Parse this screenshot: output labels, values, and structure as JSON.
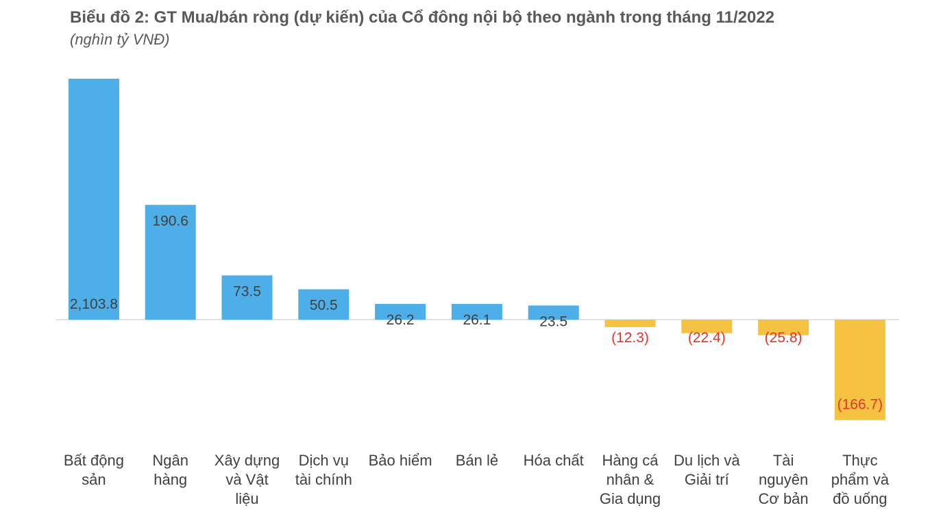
{
  "chart_data": {
    "type": "bar",
    "title": "Biểu đồ 2: GT Mua/bán ròng (dự kiến) của Cổ đông nội bộ theo ngành trong tháng 11/2022",
    "subtitle": "(nghìn tỷ VNĐ)",
    "xlabel": "",
    "ylabel": "",
    "grid": false,
    "legend": "none",
    "categories": [
      "Bất động sản",
      "Ngân hàng",
      "Xây dựng và Vật liệu",
      "Dịch vụ tài chính",
      "Bảo hiểm",
      "Bán lẻ",
      "Hóa chất",
      "Hàng cá nhân & Gia dụng",
      "Du lịch và Giải trí",
      "Tài nguyên Cơ bản",
      "Thực phẩm và đồ uống"
    ],
    "category_lines": [
      [
        "Bất động",
        "sản"
      ],
      [
        "Ngân",
        "hàng"
      ],
      [
        "Xây dựng",
        "và Vật",
        "liệu"
      ],
      [
        "Dịch vụ",
        "tài chính"
      ],
      [
        "Bảo hiểm"
      ],
      [
        "Bán lẻ"
      ],
      [
        "Hóa chất"
      ],
      [
        "Hàng cá",
        "nhân &",
        "Gia dụng"
      ],
      [
        "Du lịch và",
        "Giải trí"
      ],
      [
        "Tài",
        "nguyên",
        "Cơ bản"
      ],
      [
        "Thực",
        "phẩm và",
        "đồ uống"
      ]
    ],
    "values": [
      2103.8,
      190.6,
      73.5,
      50.5,
      26.2,
      26.1,
      23.5,
      -12.3,
      -22.4,
      -25.8,
      -166.7
    ],
    "data_labels": [
      "2,103.8",
      "190.6",
      "73.5",
      "50.5",
      "26.2",
      "26.1",
      "23.5",
      "(12.3)",
      "(22.4)",
      "(25.8)",
      "(166.7)"
    ],
    "axis_break": {
      "broken_bar_index": 0,
      "displayed_as": 400
    },
    "colors": {
      "positive": "#4daee8",
      "negative": "#f5c242",
      "positive_label": "#404040",
      "negative_label": "#e8322e",
      "axis": "#d9d9d9"
    }
  }
}
